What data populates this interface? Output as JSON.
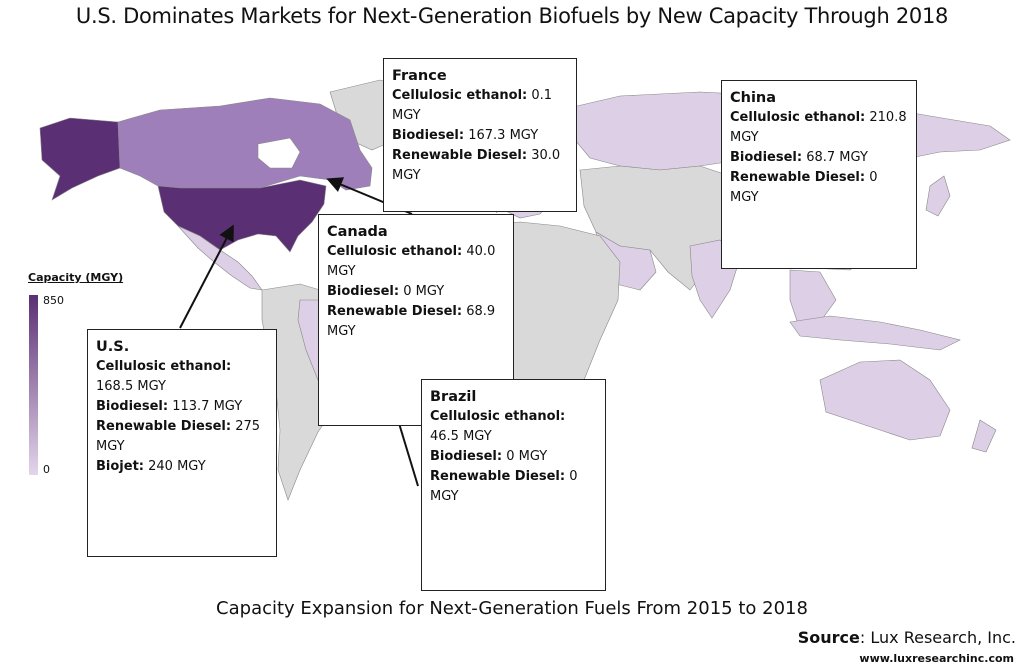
{
  "title": "U.S. Dominates Markets for Next-Generation Biofuels by New Capacity Through 2018",
  "subtitle": "Capacity Expansion for Next-Generation Fuels From 2015 to 2018",
  "source": {
    "label": "Source",
    "text": ": Lux Research, Inc.",
    "url": "www.luxresearchinc.com"
  },
  "legend": {
    "title": "Capacity (MGY)",
    "max": "850",
    "min": "0",
    "color_high": "#5b2f74",
    "color_low": "#e3d5ea"
  },
  "colors": {
    "no_data": "#d9d9d9",
    "low": "#dccfe6",
    "mid": "#b9a0cc",
    "canada": "#9f7fba",
    "us": "#5b2f74"
  },
  "callouts": {
    "us": {
      "name": "U.S.",
      "rows": [
        {
          "label": "Cellulosic ethanol:",
          "value": "168.5 MGY"
        },
        {
          "label": "Biodiesel:",
          "value": "113.7 MGY"
        },
        {
          "label": "Renewable Diesel:",
          "value": "275 MGY"
        },
        {
          "label": "Biojet:",
          "value": "240 MGY"
        }
      ]
    },
    "canada": {
      "name": "Canada",
      "rows": [
        {
          "label": "Cellulosic ethanol:",
          "value": "40.0 MGY"
        },
        {
          "label": "Biodiesel:",
          "value": "0 MGY"
        },
        {
          "label": "Renewable Diesel:",
          "value": "68.9 MGY"
        }
      ]
    },
    "france": {
      "name": "France",
      "rows": [
        {
          "label": "Cellulosic ethanol:",
          "value": "0.1 MGY"
        },
        {
          "label": "Biodiesel:",
          "value": "167.3 MGY"
        },
        {
          "label": "Renewable Diesel:",
          "value": "30.0 MGY"
        }
      ]
    },
    "china": {
      "name": "China",
      "rows": [
        {
          "label": "Cellulosic ethanol:",
          "value": "210.8 MGY"
        },
        {
          "label": "Biodiesel:",
          "value": "68.7 MGY"
        },
        {
          "label": "Renewable Diesel:",
          "value": "0 MGY"
        }
      ]
    },
    "brazil": {
      "name": "Brazil",
      "rows": [
        {
          "label": "Cellulosic ethanol:",
          "value": "46.5 MGY"
        },
        {
          "label": "Biodiesel:",
          "value": "0 MGY"
        },
        {
          "label": "Renewable Diesel:",
          "value": "0 MGY"
        }
      ]
    }
  }
}
